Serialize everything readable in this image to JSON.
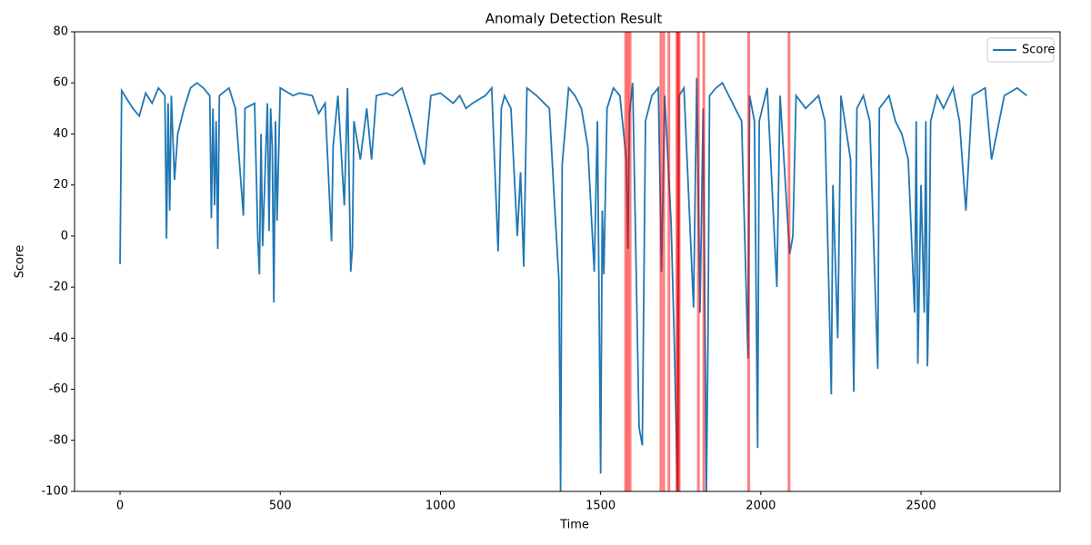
{
  "chart_data": {
    "type": "line",
    "title": "Anomaly Detection Result",
    "x_label": "Time",
    "y_label": "Score",
    "x": [
      0,
      5,
      20,
      40,
      60,
      80,
      100,
      120,
      140,
      145,
      150,
      155,
      160,
      170,
      180,
      200,
      220,
      240,
      260,
      280,
      285,
      290,
      295,
      300,
      305,
      310,
      340,
      360,
      385,
      390,
      420,
      430,
      435,
      440,
      445,
      460,
      465,
      470,
      475,
      480,
      485,
      490,
      500,
      540,
      560,
      600,
      620,
      640,
      660,
      665,
      680,
      700,
      710,
      720,
      725,
      730,
      750,
      770,
      785,
      800,
      830,
      850,
      880,
      900,
      950,
      970,
      1000,
      1040,
      1060,
      1080,
      1100,
      1140,
      1160,
      1180,
      1190,
      1200,
      1220,
      1240,
      1250,
      1260,
      1270,
      1300,
      1340,
      1355,
      1370,
      1375,
      1380,
      1400,
      1420,
      1440,
      1460,
      1480,
      1490,
      1500,
      1505,
      1510,
      1520,
      1540,
      1560,
      1580,
      1585,
      1590,
      1600,
      1620,
      1630,
      1640,
      1660,
      1680,
      1690,
      1700,
      1720,
      1730,
      1740,
      1745,
      1760,
      1790,
      1800,
      1810,
      1820,
      1830,
      1835,
      1840,
      1860,
      1880,
      1900,
      1920,
      1940,
      1960,
      1965,
      1980,
      1990,
      1995,
      2020,
      2050,
      2060,
      2090,
      2100,
      2110,
      2140,
      2180,
      2200,
      2220,
      2225,
      2240,
      2250,
      2280,
      2290,
      2300,
      2320,
      2340,
      2365,
      2370,
      2400,
      2420,
      2440,
      2460,
      2480,
      2485,
      2490,
      2500,
      2510,
      2515,
      2520,
      2525,
      2530,
      2550,
      2570,
      2600,
      2620,
      2640,
      2660,
      2700,
      2720,
      2760,
      2800,
      2830
    ],
    "series": [
      {
        "name": "Score",
        "color": "#1f77b4",
        "values": [
          -11,
          57,
          54,
          50,
          47,
          56,
          52,
          58,
          55,
          -1,
          52,
          10,
          55,
          22,
          40,
          50,
          58,
          60,
          58,
          55,
          7,
          50,
          12,
          45,
          -5,
          55,
          58,
          50,
          8,
          50,
          52,
          -1,
          -15,
          40,
          -4,
          52,
          2,
          50,
          35,
          -26,
          45,
          6,
          58,
          55,
          56,
          55,
          48,
          52,
          -2,
          35,
          55,
          12,
          58,
          -14,
          -5,
          45,
          30,
          50,
          30,
          55,
          56,
          55,
          58,
          50,
          28,
          55,
          56,
          52,
          55,
          50,
          52,
          55,
          58,
          -6,
          50,
          55,
          50,
          0,
          25,
          -12,
          58,
          55,
          50,
          15,
          -18,
          -100,
          28,
          58,
          55,
          50,
          35,
          -14,
          45,
          -93,
          10,
          -15,
          50,
          58,
          55,
          30,
          -5,
          48,
          60,
          -75,
          -82,
          45,
          55,
          58,
          -14,
          55,
          5,
          -42,
          -100,
          55,
          58,
          -28,
          62,
          -30,
          50,
          -100,
          -42,
          55,
          58,
          60,
          55,
          50,
          45,
          -48,
          55,
          45,
          -83,
          45,
          58,
          -20,
          55,
          -7,
          0,
          55,
          50,
          55,
          45,
          -62,
          20,
          -40,
          55,
          30,
          -61,
          50,
          55,
          45,
          -52,
          50,
          55,
          45,
          40,
          30,
          -30,
          45,
          -50,
          20,
          -30,
          45,
          -51,
          -20,
          45,
          55,
          50,
          58,
          45,
          10,
          55,
          58,
          30,
          55,
          58,
          55
        ]
      }
    ],
    "anomalies": [
      1578,
      1585,
      1592,
      1688,
      1697,
      1713,
      1738,
      1742,
      1745,
      1805,
      1822,
      1962,
      2088
    ],
    "anomaly_color": "#ff0000",
    "xlim": [
      -142,
      2934
    ],
    "ylim": [
      -100,
      80
    ],
    "xticks": [
      0,
      500,
      1000,
      1500,
      2000,
      2500
    ],
    "yticks": [
      -100,
      -80,
      -60,
      -40,
      -20,
      0,
      20,
      40,
      60,
      80
    ],
    "legend": "upper right"
  }
}
